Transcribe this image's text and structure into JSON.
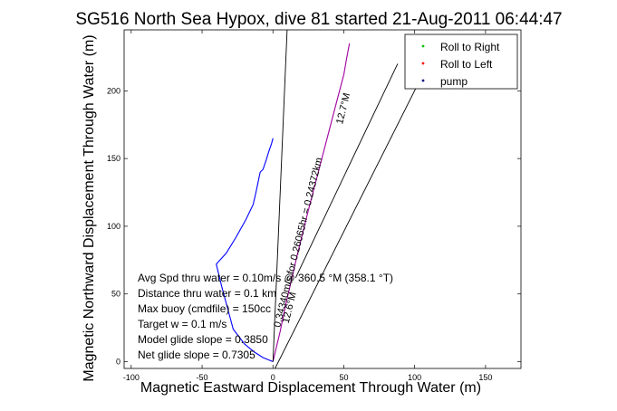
{
  "chart_data": {
    "type": "line",
    "title": "SG516 North Sea Hypox, dive 81 started 21-Aug-2011 06:44:47",
    "xlabel": "Magnetic Eastward Displacement Through Water (m)",
    "ylabel": "Magnetic Northward Displacement Through Water (m)",
    "xlim": [
      -105,
      175
    ],
    "ylim": [
      -5,
      245
    ],
    "xticks": [
      -100,
      -50,
      0,
      50,
      100,
      150
    ],
    "yticks": [
      0,
      50,
      100,
      150,
      200
    ],
    "grid": false,
    "legend": {
      "position": "top-right",
      "entries": [
        {
          "label": "Roll to Right",
          "color": "#00c000",
          "marker": "."
        },
        {
          "label": "Roll to Left",
          "color": "#ff0000",
          "marker": "."
        },
        {
          "label": "pump",
          "color": "#000080",
          "marker": "."
        }
      ]
    },
    "series": [
      {
        "style": "track",
        "color": "#0000ff",
        "x": [
          0,
          -7,
          -13,
          -20,
          -28,
          -36,
          -40,
          -33,
          -26,
          -19,
          -14,
          -12,
          -10,
          -9,
          -7,
          -5,
          -3,
          -1,
          0
        ],
        "y": [
          0,
          3,
          7,
          13,
          24,
          55,
          72,
          80,
          92,
          105,
          116,
          125,
          135,
          140,
          142,
          148,
          155,
          161,
          165
        ]
      },
      {
        "style": "track",
        "color": "#a000a0",
        "x": [
          0,
          5,
          9,
          13,
          17,
          21,
          25,
          30,
          35,
          40,
          45,
          50,
          52,
          54
        ],
        "y": [
          0,
          22,
          42,
          60,
          78,
          95,
          112,
          132,
          152,
          172,
          192,
          212,
          224,
          235
        ]
      },
      {
        "style": "line",
        "color": "#000000",
        "x": [
          0,
          10
        ],
        "y": [
          0,
          245
        ]
      },
      {
        "style": "line",
        "color": "#000000",
        "x": [
          0,
          110
        ],
        "y": [
          -8,
          221
        ]
      },
      {
        "style": "line",
        "color": "#000000",
        "x": [
          16,
          88
        ],
        "y": [
          62,
          220
        ]
      }
    ],
    "rotated_labels": [
      {
        "text": "0.34340m/s for 0.26065hr = 0.24372km",
        "x": 5,
        "y": 25,
        "angle": -76
      },
      {
        "text": "12.7°M",
        "x": 49,
        "y": 175,
        "angle": -76
      },
      {
        "text": "12.6°M",
        "x": 11,
        "y": 28,
        "angle": -76
      }
    ],
    "annotations": [
      "Avg Spd thru water =  0.10m/s @ 360.5   °M (358.1 °T)",
      "Distance thru water =  0.1 km",
      "Max buoy (cmdfile) = 150cc",
      "Target w = 0.1 m/s",
      "Model glide slope = 0.3850",
      "Net glide slope = 0.7305"
    ]
  }
}
